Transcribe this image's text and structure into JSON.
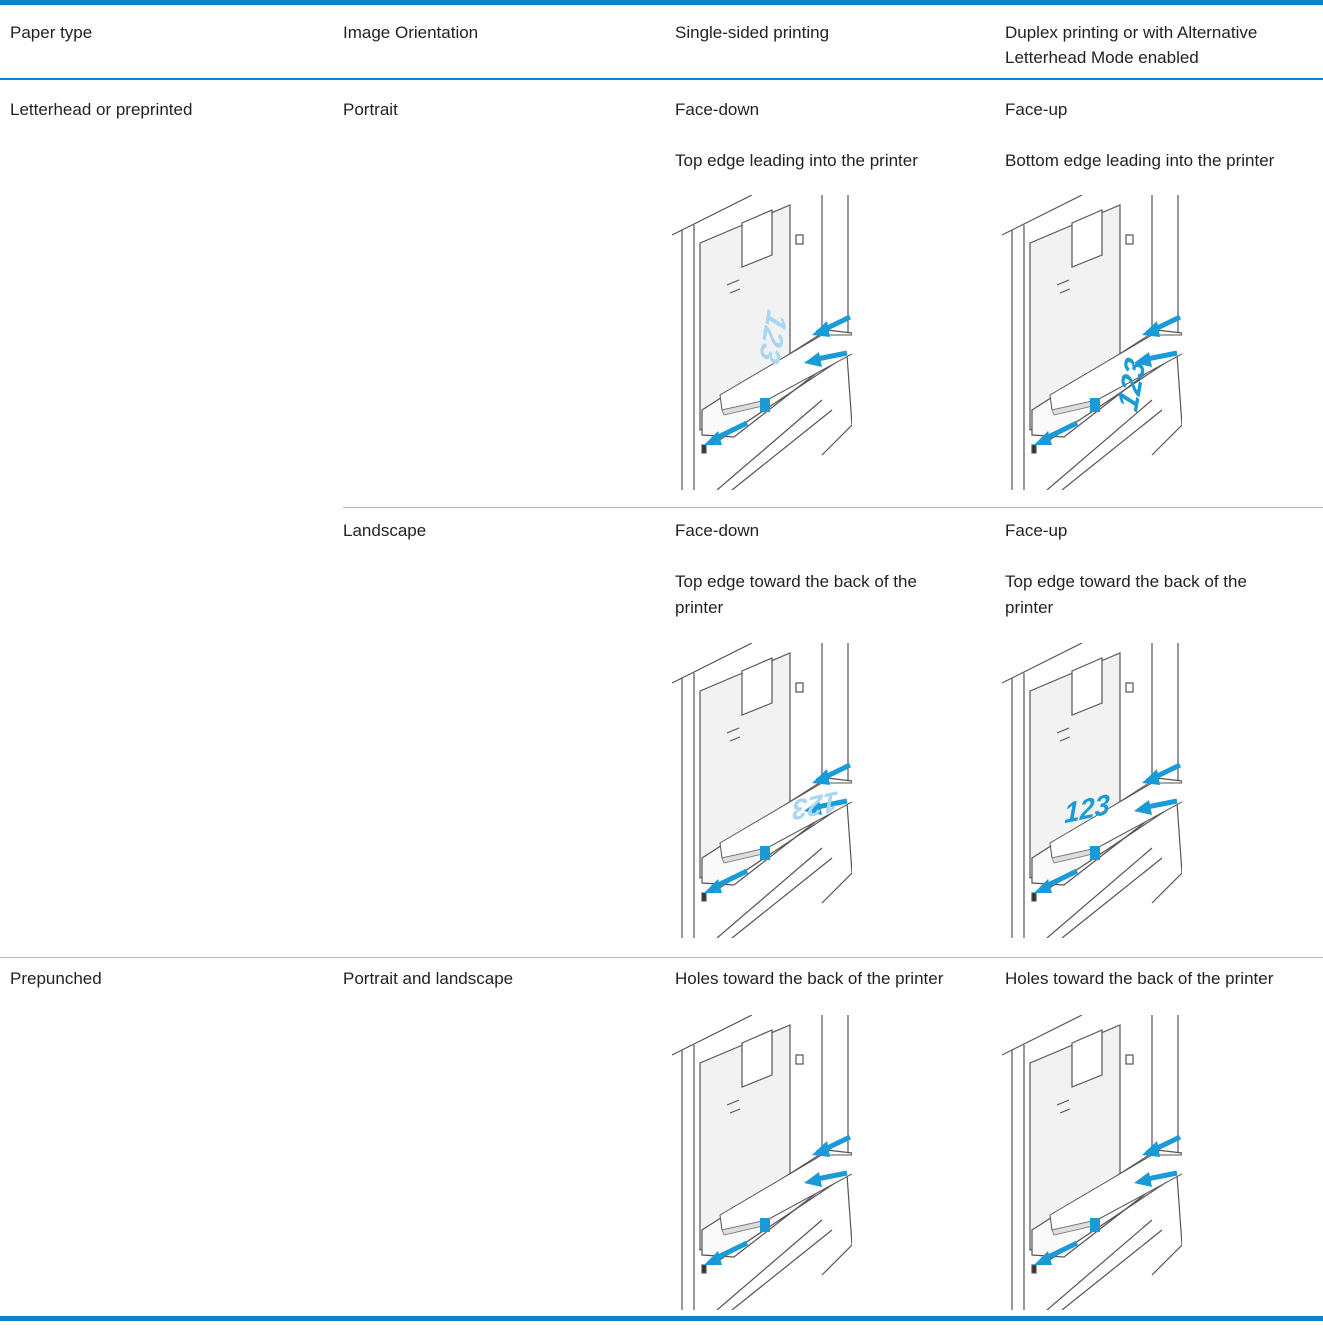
{
  "table": {
    "header": [
      "Paper type",
      "Image Orientation",
      "Single-sided printing",
      "Duplex printing or with Alternative Letterhead Mode enabled"
    ],
    "rows": [
      {
        "paper_type": "Letterhead or preprinted",
        "orientation": "Portrait",
        "single": {
          "facing": "Face-down",
          "edge": "Top edge leading into the printer",
          "paper_mark": "123"
        },
        "duplex": {
          "facing": "Face-up",
          "edge": "Bottom edge leading into the printer",
          "paper_mark": "123"
        }
      },
      {
        "orientation": "Landscape",
        "single": {
          "facing": "Face-down",
          "edge": "Top edge toward the back of the printer",
          "paper_mark": "123"
        },
        "duplex": {
          "facing": "Face-up",
          "edge": "Top edge toward the back of the printer",
          "paper_mark": "123"
        }
      },
      {
        "paper_type": "Prepunched",
        "orientation": "Portrait and landscape",
        "single": {
          "edge": "Holes toward the back of the printer"
        },
        "duplex": {
          "edge": "Holes toward the back of the printer"
        }
      }
    ]
  }
}
